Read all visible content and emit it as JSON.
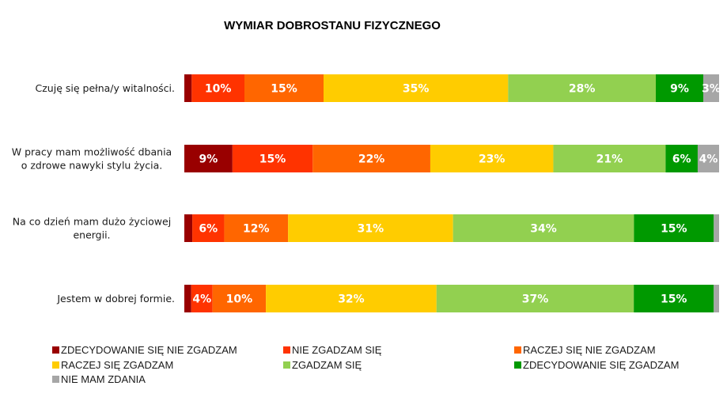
{
  "chart_data": {
    "type": "bar",
    "orientation": "horizontal",
    "stacked": "100%",
    "title": "WYMIAR DOBROSTANU FIZYCZNEGO",
    "xlabel": "",
    "ylabel": "",
    "xlim": [
      0,
      100
    ],
    "grid": false,
    "legend_position": "bottom",
    "categories": [
      [
        "Czuję się pełna/y witalności."
      ],
      [
        "W pracy mam możliwość dbania",
        "o zdrowe nawyki stylu życia."
      ],
      [
        "Na co dzień mam dużo życiowej",
        "energii."
      ],
      [
        "Jestem w dobrej formie."
      ]
    ],
    "series": [
      {
        "name": "ZDECYDOWANIE SIĘ NIE ZGADZAM",
        "color": "#990000",
        "values": [
          1.4,
          9,
          1.5,
          1.3
        ],
        "labels": [
          "",
          "9%",
          "",
          ""
        ]
      },
      {
        "name": "NIE ZGADZAM SIĘ",
        "color": "#FF3300",
        "values": [
          10,
          15,
          6,
          4
        ],
        "labels": [
          "10%",
          "15%",
          "6%",
          "4%"
        ]
      },
      {
        "name": "RACZEJ SIĘ NIE ZGADZAM",
        "color": "#FF6600",
        "values": [
          15,
          22,
          12,
          10
        ],
        "labels": [
          "15%",
          "22%",
          "12%",
          "10%"
        ]
      },
      {
        "name": "RACZEJ SIĘ ZGADZAM",
        "color": "#FFCC00",
        "values": [
          35,
          23,
          31,
          32
        ],
        "labels": [
          "35%",
          "23%",
          "31%",
          "32%"
        ]
      },
      {
        "name": "ZGADZAM SIĘ",
        "color": "#92D050",
        "values": [
          28,
          21,
          34,
          37
        ],
        "labels": [
          "28%",
          "21%",
          "34%",
          "37%"
        ]
      },
      {
        "name": "ZDECYDOWANIE SIĘ ZGADZAM",
        "color": "#009900",
        "values": [
          9,
          6,
          15,
          15
        ],
        "labels": [
          "9%",
          "6%",
          "15%",
          "15%"
        ]
      },
      {
        "name": "NIE MAM ZDANIA",
        "color": "#A6A6A6",
        "values": [
          3,
          4,
          1,
          1
        ],
        "labels": [
          "3%",
          "4%",
          "",
          ""
        ]
      }
    ]
  }
}
